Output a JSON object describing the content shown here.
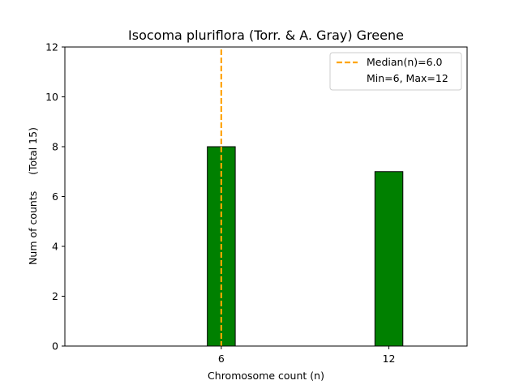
{
  "chart_data": {
    "type": "bar",
    "title": "Isocoma pluriflora (Torr. & A. Gray) Greene",
    "xlabel": "Chromosome count (n)",
    "ylabel": "Num of counts     (Total 15)",
    "categories": [
      "6",
      "12"
    ],
    "x": [
      6,
      12
    ],
    "values": [
      8,
      7
    ],
    "xlim": [
      0.4,
      14.8
    ],
    "ylim": [
      0,
      12
    ],
    "xticks": [
      6,
      12
    ],
    "yticks": [
      0,
      2,
      4,
      6,
      8,
      10,
      12
    ],
    "bar_width": 1.0,
    "bar_color": "#008000",
    "median": 6.0,
    "median_color": "#FFA500",
    "legend": {
      "placement": "top-right",
      "entries": [
        {
          "label": "Median(n)=6.0",
          "style": "dashed-line",
          "color": "#FFA500"
        },
        {
          "label": "Min=6, Max=12",
          "style": "none"
        }
      ]
    },
    "grid": false
  }
}
